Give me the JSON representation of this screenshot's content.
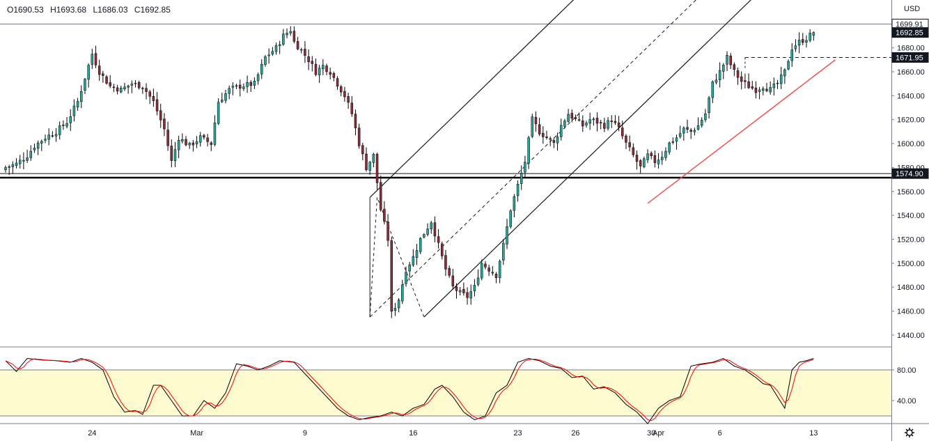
{
  "ohlc": {
    "open": "O1690.53",
    "high": "H1693.68",
    "low": "L1686.03",
    "close": "C1692.85"
  },
  "chart_data": [
    {
      "type": "candlestick",
      "currency": "USD",
      "ylim": [
        1430,
        1720
      ],
      "yticks": [
        1440,
        1460,
        1480,
        1500,
        1520,
        1540,
        1560,
        1580,
        1600,
        1620,
        1640,
        1660,
        1680
      ],
      "xlabels": [
        {
          "label": "24",
          "i": 24
        },
        {
          "label": "Mar",
          "i": 53
        },
        {
          "label": "9",
          "i": 83
        },
        {
          "label": "16",
          "i": 113
        },
        {
          "label": "23",
          "i": 142
        },
        {
          "label": "26",
          "i": 158
        },
        {
          "label": "30",
          "i": 179
        },
        {
          "label": "Apr",
          "i": 181
        },
        {
          "label": "6",
          "i": 198
        },
        {
          "label": "13",
          "i": 224
        }
      ],
      "price_labels": [
        {
          "value": 1699.91,
          "text": "1699.91",
          "bg": "#ffffff",
          "fg": "#131722"
        },
        {
          "value": 1692.85,
          "text": "1692.85",
          "bg": "#131722",
          "fg": "#ffffff"
        },
        {
          "value": 1671.95,
          "text": "1671.95",
          "bg": "#131722",
          "fg": "#ffffff"
        },
        {
          "value": 1574.9,
          "text": "1574.90",
          "bg": "#131722",
          "fg": "#ffffff"
        }
      ],
      "horizontal_lines": [
        {
          "value": 1699.91,
          "style": "thin",
          "color": "#787b86"
        },
        {
          "value": 1574.9,
          "style": "thin",
          "color": "#131722"
        },
        {
          "value": 1571.5,
          "style": "bold",
          "color": "#000000"
        }
      ],
      "colors": {
        "up": "#26a69a",
        "down": "#8b2e3a",
        "wick": "#000000",
        "trend": "#ef5350"
      },
      "anchors": [
        [
          0,
          1580,
          1
        ],
        [
          3,
          1583,
          0
        ],
        [
          6,
          1590,
          0
        ],
        [
          8,
          1598,
          1
        ],
        [
          11,
          1605,
          1
        ],
        [
          14,
          1610,
          1
        ],
        [
          17,
          1618,
          0
        ],
        [
          20,
          1635,
          1
        ],
        [
          22,
          1655,
          1
        ],
        [
          24,
          1675,
          1
        ],
        [
          26,
          1660,
          1
        ],
        [
          29,
          1648,
          0
        ],
        [
          32,
          1645,
          0
        ],
        [
          35,
          1650,
          1
        ],
        [
          38,
          1648,
          1
        ],
        [
          41,
          1635,
          0
        ],
        [
          44,
          1612,
          0
        ],
        [
          46,
          1585,
          0
        ],
        [
          48,
          1605,
          1
        ],
        [
          51,
          1598,
          0
        ],
        [
          54,
          1605,
          0
        ],
        [
          57,
          1600,
          1
        ],
        [
          59,
          1635,
          1
        ],
        [
          62,
          1645,
          1
        ],
        [
          65,
          1648,
          0
        ],
        [
          69,
          1650,
          1
        ],
        [
          72,
          1672,
          1
        ],
        [
          75,
          1680,
          1
        ],
        [
          77,
          1690,
          1
        ],
        [
          79,
          1695,
          1
        ],
        [
          80,
          1685,
          0
        ],
        [
          82,
          1678,
          0
        ],
        [
          84,
          1670,
          0
        ],
        [
          86,
          1660,
          0
        ],
        [
          88,
          1665,
          0
        ],
        [
          90,
          1660,
          1
        ],
        [
          92,
          1650,
          0
        ],
        [
          94,
          1640,
          0
        ],
        [
          96,
          1625,
          0
        ],
        [
          98,
          1600,
          0
        ],
        [
          100,
          1580,
          0
        ],
        [
          102,
          1590,
          1
        ],
        [
          104,
          1545,
          0
        ],
        [
          106,
          1520,
          0
        ],
        [
          107,
          1458,
          0
        ],
        [
          109,
          1470,
          1
        ],
        [
          111,
          1495,
          0
        ],
        [
          113,
          1505,
          1
        ],
        [
          115,
          1520,
          1
        ],
        [
          117,
          1530,
          1
        ],
        [
          118,
          1535,
          0
        ],
        [
          120,
          1515,
          0
        ],
        [
          122,
          1495,
          0
        ],
        [
          124,
          1480,
          0
        ],
        [
          126,
          1475,
          0
        ],
        [
          128,
          1472,
          0
        ],
        [
          130,
          1480,
          1
        ],
        [
          132,
          1500,
          1
        ],
        [
          134,
          1495,
          0
        ],
        [
          136,
          1490,
          0
        ],
        [
          138,
          1515,
          1
        ],
        [
          140,
          1545,
          1
        ],
        [
          142,
          1565,
          1
        ],
        [
          144,
          1585,
          1
        ],
        [
          146,
          1620,
          1
        ],
        [
          148,
          1610,
          0
        ],
        [
          150,
          1605,
          0
        ],
        [
          152,
          1600,
          0
        ],
        [
          154,
          1615,
          1
        ],
        [
          156,
          1625,
          1
        ],
        [
          158,
          1620,
          0
        ],
        [
          160,
          1615,
          0
        ],
        [
          162,
          1620,
          1
        ],
        [
          164,
          1618,
          0
        ],
        [
          166,
          1615,
          0
        ],
        [
          168,
          1620,
          1
        ],
        [
          170,
          1612,
          0
        ],
        [
          172,
          1600,
          0
        ],
        [
          174,
          1590,
          0
        ],
        [
          176,
          1580,
          1
        ],
        [
          178,
          1590,
          1
        ],
        [
          180,
          1585,
          0
        ],
        [
          182,
          1590,
          1
        ],
        [
          184,
          1600,
          1
        ],
        [
          186,
          1605,
          0
        ],
        [
          188,
          1612,
          1
        ],
        [
          190,
          1610,
          1
        ],
        [
          192,
          1615,
          1
        ],
        [
          194,
          1625,
          1
        ],
        [
          196,
          1650,
          1
        ],
        [
          198,
          1660,
          1
        ],
        [
          200,
          1672,
          1
        ],
        [
          202,
          1660,
          0
        ],
        [
          204,
          1652,
          0
        ],
        [
          206,
          1648,
          0
        ],
        [
          208,
          1645,
          1
        ],
        [
          210,
          1648,
          0
        ],
        [
          212,
          1645,
          1
        ],
        [
          214,
          1650,
          1
        ],
        [
          216,
          1660,
          1
        ],
        [
          218,
          1680,
          1
        ],
        [
          220,
          1685,
          1
        ],
        [
          222,
          1688,
          1
        ],
        [
          224,
          1692.85,
          1
        ]
      ],
      "channel": {
        "lower_start": [
          116,
          1455
        ],
        "lower_end": [
          210,
          1730
        ],
        "upper_start": [
          101,
          1555
        ],
        "upper_end": [
          195,
          1830
        ],
        "mid_start": [
          101,
          1455
        ],
        "mid_end": [
          205,
          1760
        ]
      },
      "zigzag": [
        [
          101,
          1455
        ],
        [
          103,
          1555
        ],
        [
          116,
          1455
        ]
      ],
      "trendline": {
        "start": [
          178,
          1550
        ],
        "end": [
          230,
          1670
        ]
      },
      "dashed_level": {
        "from_index": 205,
        "value": 1671.95
      }
    },
    {
      "type": "line",
      "indicator": "stochastic",
      "ylim": [
        10,
        110
      ],
      "yticks": [
        40,
        80
      ],
      "band": [
        20,
        80
      ],
      "colors": {
        "k": "#000000",
        "d": "#ff0000",
        "band": "#fffbd0"
      },
      "k_anchors": [
        [
          0,
          92
        ],
        [
          3,
          78
        ],
        [
          6,
          95
        ],
        [
          10,
          93
        ],
        [
          14,
          92
        ],
        [
          18,
          90
        ],
        [
          21,
          95
        ],
        [
          24,
          90
        ],
        [
          27,
          80
        ],
        [
          30,
          45
        ],
        [
          33,
          25
        ],
        [
          36,
          27
        ],
        [
          38,
          22
        ],
        [
          41,
          60
        ],
        [
          43,
          60
        ],
        [
          46,
          40
        ],
        [
          49,
          20
        ],
        [
          52,
          20
        ],
        [
          55,
          40
        ],
        [
          58,
          30
        ],
        [
          61,
          50
        ],
        [
          64,
          88
        ],
        [
          67,
          85
        ],
        [
          70,
          80
        ],
        [
          73,
          85
        ],
        [
          76,
          92
        ],
        [
          80,
          90
        ],
        [
          83,
          75
        ],
        [
          86,
          60
        ],
        [
          89,
          45
        ],
        [
          92,
          30
        ],
        [
          95,
          20
        ],
        [
          98,
          15
        ],
        [
          101,
          18
        ],
        [
          104,
          20
        ],
        [
          107,
          25
        ],
        [
          110,
          20
        ],
        [
          113,
          30
        ],
        [
          116,
          35
        ],
        [
          119,
          55
        ],
        [
          121,
          60
        ],
        [
          124,
          45
        ],
        [
          127,
          25
        ],
        [
          130,
          15
        ],
        [
          133,
          20
        ],
        [
          136,
          50
        ],
        [
          139,
          60
        ],
        [
          142,
          90
        ],
        [
          145,
          95
        ],
        [
          148,
          92
        ],
        [
          151,
          85
        ],
        [
          154,
          82
        ],
        [
          157,
          70
        ],
        [
          160,
          72
        ],
        [
          163,
          55
        ],
        [
          166,
          58
        ],
        [
          169,
          50
        ],
        [
          172,
          35
        ],
        [
          175,
          25
        ],
        [
          178,
          10
        ],
        [
          181,
          30
        ],
        [
          184,
          40
        ],
        [
          187,
          45
        ],
        [
          190,
          85
        ],
        [
          193,
          88
        ],
        [
          196,
          90
        ],
        [
          199,
          95
        ],
        [
          202,
          85
        ],
        [
          205,
          80
        ],
        [
          208,
          70
        ],
        [
          210,
          62
        ],
        [
          212,
          60
        ],
        [
          214,
          45
        ],
        [
          216,
          30
        ],
        [
          218,
          80
        ],
        [
          220,
          90
        ],
        [
          222,
          92
        ],
        [
          224,
          95
        ]
      ]
    }
  ]
}
